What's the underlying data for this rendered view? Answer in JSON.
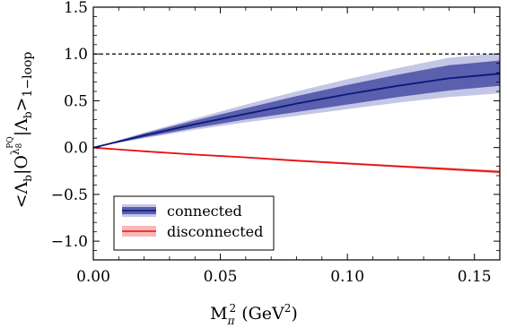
{
  "chart_data": {
    "type": "line",
    "title": "",
    "xlabel": "M",
    "xlabel_sub": "π",
    "xlabel_sup": "2",
    "xlabel_tail": " (GeV",
    "xlabel_tail_sup": "2",
    "xlabel_close": ")",
    "ylabel": "<Λ_b|O^{λ8^PQ}|Λ_b>_{1-loop}",
    "ylabel_parts": {
      "lt": "<Λ",
      "b1": "b",
      "bar": "|O",
      "sup_main": "λ",
      "sup_sub": "8",
      "sup_sup": "PQ",
      "mid": "|Λ",
      "b2": "b",
      "gt": ">",
      "loop": "1−loop"
    },
    "xlim": [
      0.0,
      0.16
    ],
    "ylim": [
      -1.2,
      1.5
    ],
    "x_ticks": [
      0.0,
      0.05,
      0.1,
      0.15
    ],
    "x_tick_labels": [
      "0.00",
      "0.05",
      "0.10",
      "0.15"
    ],
    "y_ticks": [
      -1.0,
      -0.5,
      0.0,
      0.5,
      1.0,
      1.5
    ],
    "y_tick_labels": [
      "−1.0",
      "−0.5",
      "0.0",
      "0.5",
      "1.0",
      "1.5"
    ],
    "reference_line": {
      "y": 1.0,
      "style": "dashed"
    },
    "legend_position": "bottom-left",
    "series": [
      {
        "name": "connected",
        "color": "#0a1a7a",
        "band_inner_color": "#5a5fae",
        "band_outer_color": "#c4c6e6",
        "x": [
          0.0,
          0.02,
          0.04,
          0.06,
          0.08,
          0.1,
          0.12,
          0.14,
          0.16
        ],
        "y": [
          0.0,
          0.13,
          0.25,
          0.36,
          0.47,
          0.57,
          0.66,
          0.74,
          0.79
        ],
        "inner_low": [
          0.0,
          0.11,
          0.21,
          0.3,
          0.38,
          0.46,
          0.54,
          0.61,
          0.66
        ],
        "inner_high": [
          0.0,
          0.15,
          0.29,
          0.42,
          0.55,
          0.67,
          0.78,
          0.88,
          0.93
        ],
        "outer_low": [
          0.0,
          0.1,
          0.19,
          0.27,
          0.34,
          0.41,
          0.48,
          0.54,
          0.58
        ],
        "outer_high": [
          0.0,
          0.16,
          0.31,
          0.46,
          0.6,
          0.73,
          0.85,
          0.96,
          1.01
        ]
      },
      {
        "name": "disconnected",
        "color": "#e81010",
        "band_outer_color": "#f6b8b8",
        "x": [
          0.0,
          0.02,
          0.04,
          0.06,
          0.08,
          0.1,
          0.12,
          0.14,
          0.16
        ],
        "y": [
          0.0,
          -0.04,
          -0.075,
          -0.105,
          -0.14,
          -0.17,
          -0.2,
          -0.23,
          -0.26
        ],
        "outer_low": [
          0.0,
          -0.045,
          -0.082,
          -0.113,
          -0.15,
          -0.182,
          -0.213,
          -0.245,
          -0.277
        ],
        "outer_high": [
          0.0,
          -0.035,
          -0.068,
          -0.097,
          -0.13,
          -0.158,
          -0.187,
          -0.215,
          -0.243
        ]
      }
    ]
  }
}
